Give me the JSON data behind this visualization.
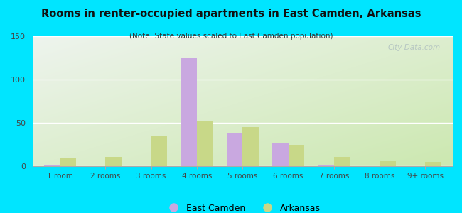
{
  "title": "Rooms in renter-occupied apartments in East Camden, Arkansas",
  "subtitle": "(Note: State values scaled to East Camden population)",
  "categories": [
    "1 room",
    "2 rooms",
    "3 rooms",
    "4 rooms",
    "5 rooms",
    "6 rooms",
    "7 rooms",
    "8 rooms",
    "9+ rooms"
  ],
  "east_camden": [
    1,
    0,
    0,
    125,
    38,
    27,
    2,
    0,
    0
  ],
  "arkansas": [
    9,
    11,
    35,
    52,
    45,
    25,
    11,
    6,
    5
  ],
  "ec_color": "#c9a8e0",
  "ar_color": "#c8d888",
  "background_outer": "#00e5ff",
  "background_inner_top_left": "#eef4ee",
  "background_inner_bottom_right": "#cce8b0",
  "ylim": [
    0,
    150
  ],
  "yticks": [
    0,
    50,
    100,
    150
  ],
  "bar_width": 0.35,
  "watermark": "City-Data.com"
}
